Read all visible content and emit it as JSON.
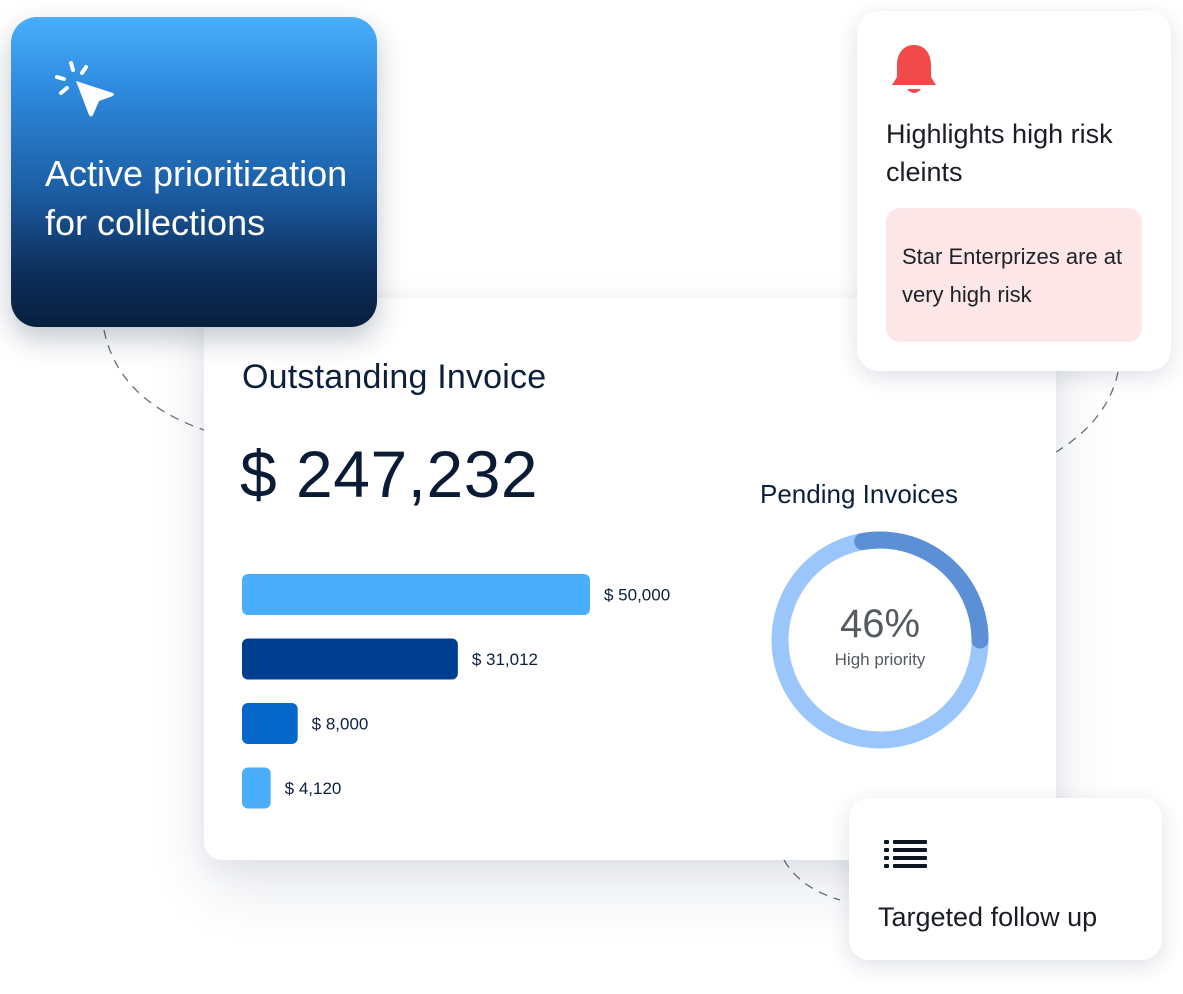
{
  "promo_card": {
    "title": "Active prioritization for collections",
    "icon": "cursor-click-icon",
    "gradient_top": "#4aaefc",
    "gradient_bottom": "#07203f"
  },
  "alert_card": {
    "icon": "bell-icon",
    "icon_color": "#f24a4a",
    "title": "Highlights high risk cleints",
    "message": "Star Enterprizes are at very high risk",
    "message_bg": "#fde6e8"
  },
  "outstanding": {
    "title": "Outstanding Invoice",
    "amount": "$ 247,232"
  },
  "pending": {
    "title": "Pending Invoices",
    "percent_label": "46%",
    "sub_label": "High priority",
    "ring_color": "#9bc6fb",
    "highlight_color": "#5b8fd6"
  },
  "followup_card": {
    "icon": "list-icon",
    "title": "Targeted follow up"
  },
  "chart_data": [
    {
      "type": "bar",
      "orientation": "horizontal",
      "values": [
        50000,
        31012,
        8000,
        4120
      ],
      "value_labels": [
        "$ 50,000",
        "$ 31,012",
        "$ 8,000",
        "$ 4,120"
      ],
      "colors": [
        "#4aaefc",
        "#003f8f",
        "#0467c9",
        "#4aaefc"
      ],
      "xlim": [
        0,
        50000
      ],
      "grid": false
    },
    {
      "type": "pie",
      "variant": "donut",
      "values": [
        46
      ],
      "value_labels": [
        "46%"
      ]
    }
  ]
}
